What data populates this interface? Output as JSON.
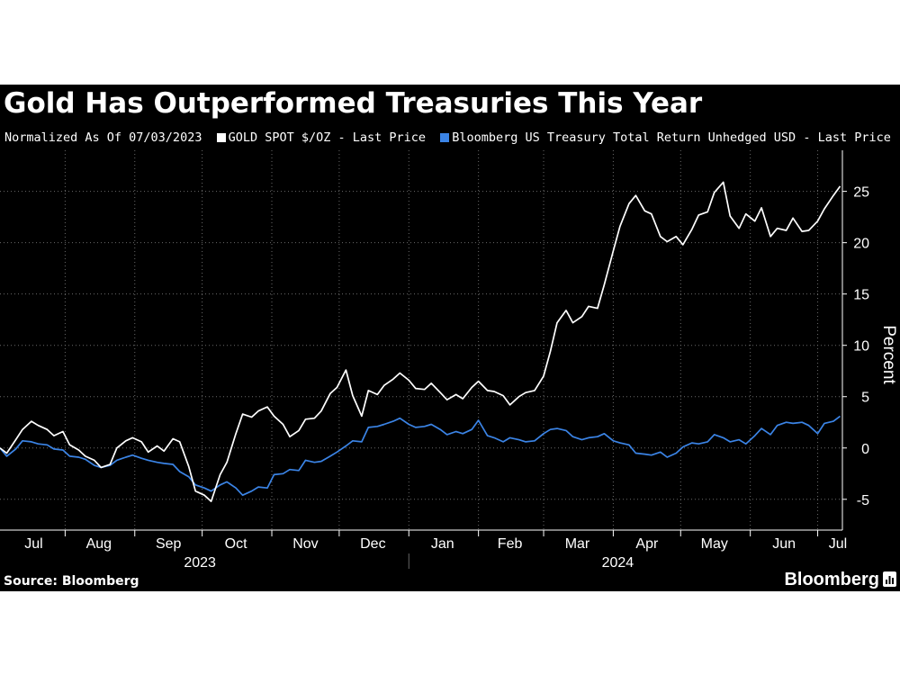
{
  "header": {
    "title": "Gold Has Outperformed Treasuries This Year"
  },
  "legend": {
    "note": "Normalized As Of 07/03/2023",
    "items": [
      {
        "label": "GOLD SPOT $/OZ - Last Price",
        "color": "#ffffff"
      },
      {
        "label": "Bloomberg US Treasury Total Return Unhedged USD - Last Price",
        "color": "#3b84e6"
      }
    ]
  },
  "footer": {
    "source": "Source: Bloomberg",
    "brand": "Bloomberg",
    "brand_icon": "bloomberg-chart-icon"
  },
  "chart_data": {
    "type": "line",
    "title": "Gold Has Outperformed Treasuries This Year",
    "subtitle": "Normalized As Of 07/03/2023",
    "xlabel": "",
    "ylabel": "Percent",
    "x_range": [
      "2023-07-03",
      "2024-07-12"
    ],
    "ylim": [
      -8,
      29
    ],
    "y_ticks": [
      -5,
      0,
      5,
      10,
      15,
      20,
      25
    ],
    "x_tick_labels": [
      "Jul",
      "Aug",
      "Sep",
      "Oct",
      "Nov",
      "Dec",
      "Jan",
      "Feb",
      "Mar",
      "Apr",
      "May",
      "Jun",
      "Jul"
    ],
    "year_labels": [
      "2023",
      "2024"
    ],
    "grid": true,
    "legend_position": "top-left",
    "y_axis_side": "right",
    "series": [
      {
        "name": "GOLD SPOT $/OZ - Last Price",
        "color": "#ffffff",
        "points": [
          [
            "2023-07-03",
            0.0
          ],
          [
            "2023-07-06",
            -0.5
          ],
          [
            "2023-07-10",
            0.8
          ],
          [
            "2023-07-13",
            1.8
          ],
          [
            "2023-07-17",
            2.6
          ],
          [
            "2023-07-20",
            2.2
          ],
          [
            "2023-07-24",
            1.8
          ],
          [
            "2023-07-27",
            1.2
          ],
          [
            "2023-07-31",
            1.6
          ],
          [
            "2023-08-03",
            0.3
          ],
          [
            "2023-08-07",
            -0.2
          ],
          [
            "2023-08-10",
            -0.8
          ],
          [
            "2023-08-14",
            -1.2
          ],
          [
            "2023-08-17",
            -1.9
          ],
          [
            "2023-08-21",
            -1.6
          ],
          [
            "2023-08-24",
            0.0
          ],
          [
            "2023-08-28",
            0.7
          ],
          [
            "2023-08-31",
            1.0
          ],
          [
            "2023-09-04",
            0.6
          ],
          [
            "2023-09-07",
            -0.4
          ],
          [
            "2023-09-11",
            0.2
          ],
          [
            "2023-09-14",
            -0.3
          ],
          [
            "2023-09-18",
            0.9
          ],
          [
            "2023-09-21",
            0.6
          ],
          [
            "2023-09-25",
            -1.8
          ],
          [
            "2023-09-28",
            -4.2
          ],
          [
            "2023-10-02",
            -4.6
          ],
          [
            "2023-10-05",
            -5.2
          ],
          [
            "2023-10-09",
            -2.6
          ],
          [
            "2023-10-12",
            -1.4
          ],
          [
            "2023-10-16",
            1.4
          ],
          [
            "2023-10-19",
            3.3
          ],
          [
            "2023-10-23",
            3.0
          ],
          [
            "2023-10-26",
            3.6
          ],
          [
            "2023-10-30",
            4.0
          ],
          [
            "2023-11-02",
            3.1
          ],
          [
            "2023-11-06",
            2.3
          ],
          [
            "2023-11-09",
            1.1
          ],
          [
            "2023-11-13",
            1.7
          ],
          [
            "2023-11-16",
            2.8
          ],
          [
            "2023-11-20",
            2.9
          ],
          [
            "2023-11-23",
            3.6
          ],
          [
            "2023-11-27",
            5.3
          ],
          [
            "2023-11-30",
            5.9
          ],
          [
            "2023-12-04",
            7.6
          ],
          [
            "2023-12-07",
            5.1
          ],
          [
            "2023-12-11",
            3.1
          ],
          [
            "2023-12-14",
            5.6
          ],
          [
            "2023-12-18",
            5.2
          ],
          [
            "2023-12-21",
            6.1
          ],
          [
            "2023-12-25",
            6.7
          ],
          [
            "2023-12-28",
            7.3
          ],
          [
            "2024-01-01",
            6.6
          ],
          [
            "2024-01-04",
            5.8
          ],
          [
            "2024-01-08",
            5.7
          ],
          [
            "2024-01-11",
            6.3
          ],
          [
            "2024-01-15",
            5.4
          ],
          [
            "2024-01-18",
            4.7
          ],
          [
            "2024-01-22",
            5.2
          ],
          [
            "2024-01-25",
            4.8
          ],
          [
            "2024-01-29",
            5.9
          ],
          [
            "2024-02-01",
            6.5
          ],
          [
            "2024-02-05",
            5.6
          ],
          [
            "2024-02-08",
            5.5
          ],
          [
            "2024-02-12",
            5.1
          ],
          [
            "2024-02-15",
            4.2
          ],
          [
            "2024-02-19",
            5.0
          ],
          [
            "2024-02-22",
            5.4
          ],
          [
            "2024-02-26",
            5.6
          ],
          [
            "2024-03-01",
            7.0
          ],
          [
            "2024-03-04",
            9.4
          ],
          [
            "2024-03-07",
            12.2
          ],
          [
            "2024-03-11",
            13.4
          ],
          [
            "2024-03-14",
            12.2
          ],
          [
            "2024-03-18",
            12.8
          ],
          [
            "2024-03-21",
            13.8
          ],
          [
            "2024-03-25",
            13.6
          ],
          [
            "2024-03-28",
            15.9
          ],
          [
            "2024-04-01",
            19.2
          ],
          [
            "2024-04-04",
            21.6
          ],
          [
            "2024-04-08",
            23.8
          ],
          [
            "2024-04-11",
            24.6
          ],
          [
            "2024-04-15",
            23.1
          ],
          [
            "2024-04-18",
            22.8
          ],
          [
            "2024-04-22",
            20.6
          ],
          [
            "2024-04-25",
            20.1
          ],
          [
            "2024-04-29",
            20.6
          ],
          [
            "2024-05-02",
            19.8
          ],
          [
            "2024-05-06",
            21.3
          ],
          [
            "2024-05-09",
            22.7
          ],
          [
            "2024-05-13",
            23.0
          ],
          [
            "2024-05-16",
            24.9
          ],
          [
            "2024-05-20",
            25.9
          ],
          [
            "2024-05-23",
            22.6
          ],
          [
            "2024-05-27",
            21.4
          ],
          [
            "2024-05-30",
            22.8
          ],
          [
            "2024-06-03",
            22.1
          ],
          [
            "2024-06-06",
            23.4
          ],
          [
            "2024-06-10",
            20.6
          ],
          [
            "2024-06-13",
            21.4
          ],
          [
            "2024-06-17",
            21.2
          ],
          [
            "2024-06-20",
            22.4
          ],
          [
            "2024-06-24",
            21.1
          ],
          [
            "2024-06-27",
            21.2
          ],
          [
            "2024-07-01",
            22.1
          ],
          [
            "2024-07-04",
            23.3
          ],
          [
            "2024-07-08",
            24.6
          ],
          [
            "2024-07-11",
            25.5
          ]
        ]
      },
      {
        "name": "Bloomberg US Treasury Total Return Unhedged USD - Last Price",
        "color": "#3b84e6",
        "points": [
          [
            "2023-07-03",
            0.0
          ],
          [
            "2023-07-06",
            -0.8
          ],
          [
            "2023-07-10",
            -0.1
          ],
          [
            "2023-07-13",
            0.7
          ],
          [
            "2023-07-17",
            0.6
          ],
          [
            "2023-07-20",
            0.4
          ],
          [
            "2023-07-24",
            0.3
          ],
          [
            "2023-07-27",
            -0.1
          ],
          [
            "2023-07-31",
            -0.2
          ],
          [
            "2023-08-03",
            -0.8
          ],
          [
            "2023-08-07",
            -0.9
          ],
          [
            "2023-08-10",
            -1.1
          ],
          [
            "2023-08-14",
            -1.7
          ],
          [
            "2023-08-17",
            -1.9
          ],
          [
            "2023-08-21",
            -1.7
          ],
          [
            "2023-08-24",
            -1.2
          ],
          [
            "2023-08-28",
            -0.9
          ],
          [
            "2023-08-31",
            -0.7
          ],
          [
            "2023-09-04",
            -1.0
          ],
          [
            "2023-09-07",
            -1.2
          ],
          [
            "2023-09-11",
            -1.4
          ],
          [
            "2023-09-14",
            -1.5
          ],
          [
            "2023-09-18",
            -1.6
          ],
          [
            "2023-09-21",
            -2.3
          ],
          [
            "2023-09-25",
            -2.8
          ],
          [
            "2023-09-28",
            -3.6
          ],
          [
            "2023-10-02",
            -3.9
          ],
          [
            "2023-10-05",
            -4.2
          ],
          [
            "2023-10-09",
            -3.6
          ],
          [
            "2023-10-12",
            -3.3
          ],
          [
            "2023-10-16",
            -3.9
          ],
          [
            "2023-10-19",
            -4.6
          ],
          [
            "2023-10-23",
            -4.2
          ],
          [
            "2023-10-26",
            -3.8
          ],
          [
            "2023-10-30",
            -3.9
          ],
          [
            "2023-11-02",
            -2.6
          ],
          [
            "2023-11-06",
            -2.5
          ],
          [
            "2023-11-09",
            -2.1
          ],
          [
            "2023-11-13",
            -2.2
          ],
          [
            "2023-11-16",
            -1.2
          ],
          [
            "2023-11-20",
            -1.4
          ],
          [
            "2023-11-23",
            -1.3
          ],
          [
            "2023-11-27",
            -0.8
          ],
          [
            "2023-11-30",
            -0.4
          ],
          [
            "2023-12-04",
            0.2
          ],
          [
            "2023-12-07",
            0.7
          ],
          [
            "2023-12-11",
            0.6
          ],
          [
            "2023-12-14",
            2.0
          ],
          [
            "2023-12-18",
            2.1
          ],
          [
            "2023-12-21",
            2.3
          ],
          [
            "2023-12-25",
            2.6
          ],
          [
            "2023-12-28",
            2.9
          ],
          [
            "2024-01-01",
            2.3
          ],
          [
            "2024-01-04",
            2.0
          ],
          [
            "2024-01-08",
            2.1
          ],
          [
            "2024-01-11",
            2.3
          ],
          [
            "2024-01-15",
            1.8
          ],
          [
            "2024-01-18",
            1.3
          ],
          [
            "2024-01-22",
            1.6
          ],
          [
            "2024-01-25",
            1.4
          ],
          [
            "2024-01-29",
            1.8
          ],
          [
            "2024-02-01",
            2.7
          ],
          [
            "2024-02-05",
            1.2
          ],
          [
            "2024-02-08",
            1.0
          ],
          [
            "2024-02-12",
            0.6
          ],
          [
            "2024-02-15",
            1.0
          ],
          [
            "2024-02-19",
            0.8
          ],
          [
            "2024-02-22",
            0.6
          ],
          [
            "2024-02-26",
            0.7
          ],
          [
            "2024-03-01",
            1.4
          ],
          [
            "2024-03-04",
            1.8
          ],
          [
            "2024-03-07",
            1.9
          ],
          [
            "2024-03-11",
            1.7
          ],
          [
            "2024-03-14",
            1.1
          ],
          [
            "2024-03-18",
            0.8
          ],
          [
            "2024-03-21",
            1.0
          ],
          [
            "2024-03-25",
            1.1
          ],
          [
            "2024-03-28",
            1.4
          ],
          [
            "2024-04-01",
            0.7
          ],
          [
            "2024-04-04",
            0.5
          ],
          [
            "2024-04-08",
            0.3
          ],
          [
            "2024-04-11",
            -0.5
          ],
          [
            "2024-04-15",
            -0.6
          ],
          [
            "2024-04-18",
            -0.7
          ],
          [
            "2024-04-22",
            -0.4
          ],
          [
            "2024-04-25",
            -0.9
          ],
          [
            "2024-04-29",
            -0.5
          ],
          [
            "2024-05-02",
            0.1
          ],
          [
            "2024-05-06",
            0.5
          ],
          [
            "2024-05-09",
            0.4
          ],
          [
            "2024-05-13",
            0.6
          ],
          [
            "2024-05-16",
            1.3
          ],
          [
            "2024-05-20",
            1.0
          ],
          [
            "2024-05-23",
            0.6
          ],
          [
            "2024-05-27",
            0.8
          ],
          [
            "2024-05-30",
            0.4
          ],
          [
            "2024-06-03",
            1.2
          ],
          [
            "2024-06-06",
            1.9
          ],
          [
            "2024-06-10",
            1.3
          ],
          [
            "2024-06-13",
            2.2
          ],
          [
            "2024-06-17",
            2.5
          ],
          [
            "2024-06-20",
            2.4
          ],
          [
            "2024-06-24",
            2.5
          ],
          [
            "2024-06-27",
            2.2
          ],
          [
            "2024-07-01",
            1.4
          ],
          [
            "2024-07-04",
            2.4
          ],
          [
            "2024-07-08",
            2.6
          ],
          [
            "2024-07-11",
            3.1
          ]
        ]
      }
    ]
  }
}
